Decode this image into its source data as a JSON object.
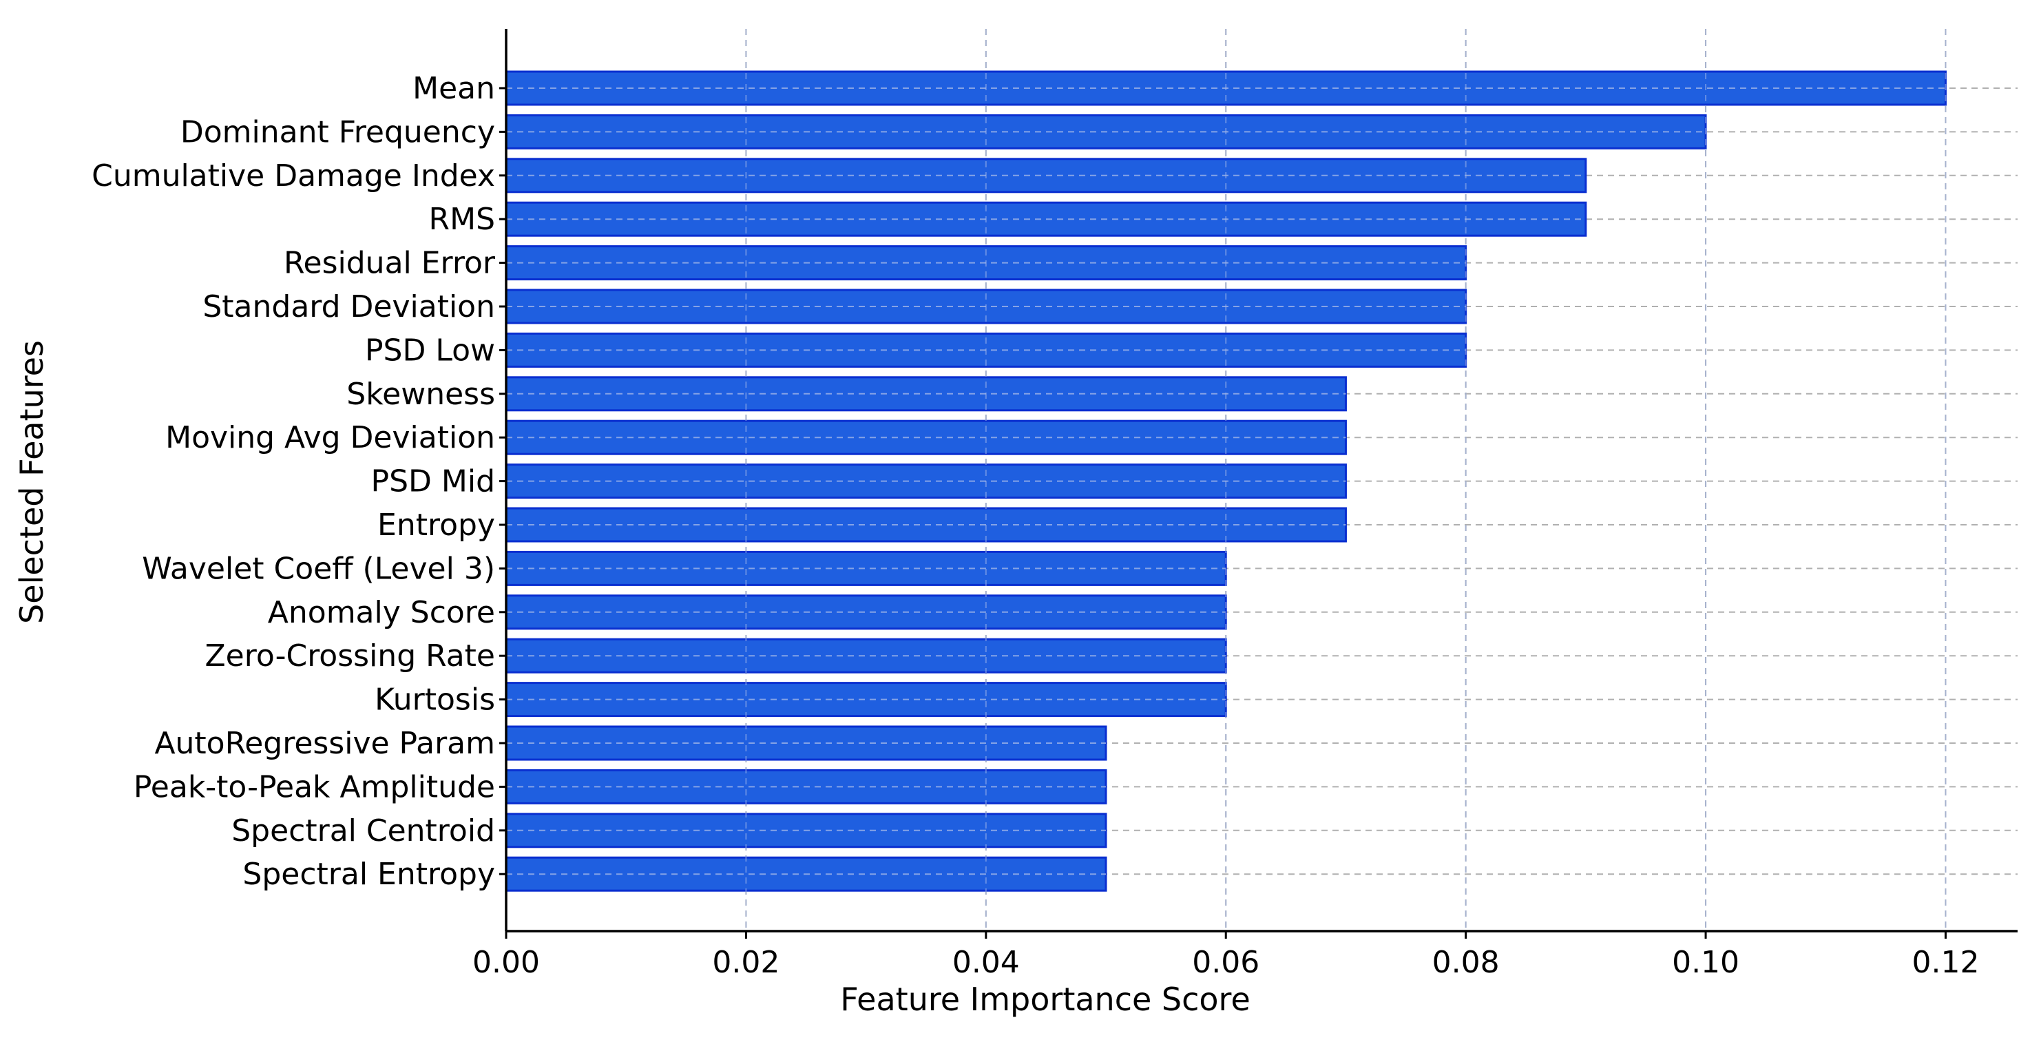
{
  "chart_data": {
    "type": "bar",
    "orientation": "horizontal",
    "title": "",
    "xlabel": "Feature Importance Score",
    "ylabel": "Selected Features",
    "xlim": [
      0,
      0.126
    ],
    "xticks": [
      0.0,
      0.02,
      0.04,
      0.06,
      0.08,
      0.1,
      0.12
    ],
    "xtick_labels": [
      "0.00",
      "0.02",
      "0.04",
      "0.06",
      "0.08",
      "0.10",
      "0.12"
    ],
    "grid": true,
    "bar_color": "#1f5fe0",
    "bar_edge_color": "#0a2fd0",
    "categories": [
      "Mean",
      "Dominant Frequency",
      "Cumulative Damage Index",
      "RMS",
      "Residual Error",
      "Standard Deviation",
      "PSD Low",
      "Skewness",
      "Moving Avg Deviation",
      "PSD Mid",
      "Entropy",
      "Wavelet Coeff (Level 3)",
      "Anomaly Score",
      "Zero-Crossing Rate",
      "Kurtosis",
      "AutoRegressive Param",
      "Peak-to-Peak Amplitude",
      "Spectral Centroid",
      "Spectral Entropy"
    ],
    "values": [
      0.12,
      0.1,
      0.09,
      0.09,
      0.08,
      0.08,
      0.08,
      0.07,
      0.07,
      0.07,
      0.07,
      0.06,
      0.06,
      0.06,
      0.06,
      0.05,
      0.05,
      0.05,
      0.05
    ]
  }
}
